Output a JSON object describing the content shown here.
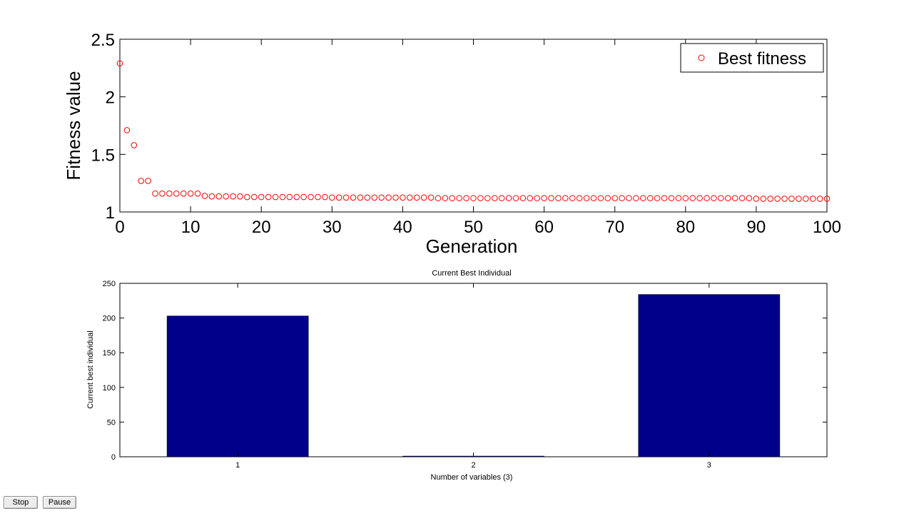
{
  "chart_data": [
    {
      "type": "scatter",
      "title": "",
      "xlabel": "Generation",
      "ylabel": "Fitness value",
      "xlim": [
        0,
        100
      ],
      "ylim": [
        1,
        2.5
      ],
      "xticks": [
        "0",
        "10",
        "20",
        "30",
        "40",
        "50",
        "60",
        "70",
        "80",
        "90",
        "100"
      ],
      "yticks": [
        "1",
        "1.5",
        "2",
        "2.5"
      ],
      "legend": {
        "position": "top-right",
        "entries": [
          "Best fitness"
        ]
      },
      "marker_color": "#ff0000",
      "series": [
        {
          "name": "Best fitness",
          "x": [
            0,
            1,
            2,
            3,
            4,
            5,
            6,
            7,
            8,
            9,
            10,
            11,
            12,
            13,
            14,
            15,
            16,
            17,
            18,
            19,
            20,
            21,
            22,
            23,
            24,
            25,
            26,
            27,
            28,
            29,
            30,
            31,
            32,
            33,
            34,
            35,
            36,
            37,
            38,
            39,
            40,
            41,
            42,
            43,
            44,
            45,
            46,
            47,
            48,
            49,
            50,
            51,
            52,
            53,
            54,
            55,
            56,
            57,
            58,
            59,
            60,
            61,
            62,
            63,
            64,
            65,
            66,
            67,
            68,
            69,
            70,
            71,
            72,
            73,
            74,
            75,
            76,
            77,
            78,
            79,
            80,
            81,
            82,
            83,
            84,
            85,
            86,
            87,
            88,
            89,
            90,
            91,
            92,
            93,
            94,
            95,
            96,
            97,
            98,
            99,
            100
          ],
          "y": [
            2.29,
            1.71,
            1.58,
            1.27,
            1.27,
            1.16,
            1.16,
            1.16,
            1.16,
            1.16,
            1.16,
            1.16,
            1.14,
            1.135,
            1.135,
            1.135,
            1.135,
            1.135,
            1.13,
            1.13,
            1.13,
            1.13,
            1.13,
            1.13,
            1.13,
            1.13,
            1.13,
            1.13,
            1.13,
            1.13,
            1.125,
            1.125,
            1.125,
            1.125,
            1.125,
            1.125,
            1.125,
            1.125,
            1.125,
            1.125,
            1.125,
            1.125,
            1.125,
            1.125,
            1.125,
            1.12,
            1.12,
            1.12,
            1.12,
            1.12,
            1.12,
            1.12,
            1.12,
            1.12,
            1.12,
            1.12,
            1.12,
            1.12,
            1.12,
            1.12,
            1.12,
            1.12,
            1.12,
            1.12,
            1.12,
            1.12,
            1.12,
            1.12,
            1.12,
            1.12,
            1.12,
            1.12,
            1.12,
            1.12,
            1.12,
            1.12,
            1.12,
            1.12,
            1.12,
            1.12,
            1.12,
            1.12,
            1.12,
            1.12,
            1.12,
            1.12,
            1.12,
            1.12,
            1.12,
            1.12,
            1.115,
            1.115,
            1.115,
            1.115,
            1.115,
            1.115,
            1.115,
            1.115,
            1.115,
            1.115,
            1.115
          ]
        }
      ]
    },
    {
      "type": "bar",
      "title": "Current Best Individual",
      "xlabel": "Number of variables (3)",
      "ylabel": "Current best individual",
      "categories": [
        "1",
        "2",
        "3"
      ],
      "values": [
        203,
        1,
        234
      ],
      "xlim": [
        0.5,
        3.5
      ],
      "ylim": [
        0,
        250
      ],
      "yticks": [
        "0",
        "50",
        "100",
        "150",
        "200",
        "250"
      ],
      "bar_color": "#00008b"
    }
  ],
  "controls": {
    "stop_label": "Stop",
    "pause_label": "Pause"
  }
}
